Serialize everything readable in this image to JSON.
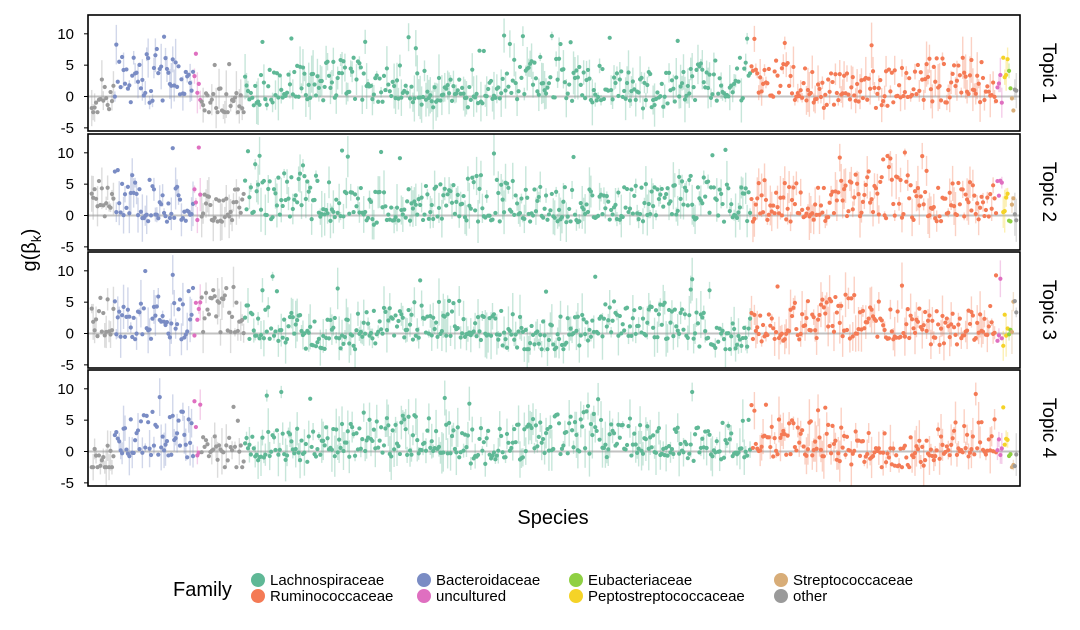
{
  "chart_data": {
    "type": "scatter",
    "xlabel": "Species",
    "ylabel": "g(β_k)",
    "ylabel_main": "g(β",
    "ylabel_sub": "k",
    "ylabel_close": ")",
    "y_ticks": [
      -5,
      0,
      5,
      10
    ],
    "ylim": [
      -5.5,
      13
    ],
    "reference_line_y": 0,
    "n_species": 640,
    "panels": [
      {
        "label": "Topic 1",
        "seed": 11
      },
      {
        "label": "Topic 2",
        "seed": 23
      },
      {
        "label": "Topic 3",
        "seed": 37
      },
      {
        "label": "Topic 4",
        "seed": 53
      }
    ],
    "legend": {
      "title": "Family",
      "position": "bottom",
      "entries": [
        {
          "name": "Lachnospiraceae",
          "color": "#5fb896"
        },
        {
          "name": "Ruminococcaceae",
          "color": "#f47a55"
        },
        {
          "name": "Bacteroidaceae",
          "color": "#7a8cc4"
        },
        {
          "name": "uncultured",
          "color": "#df6fc0"
        },
        {
          "name": "Eubacteriaceae",
          "color": "#8fd043"
        },
        {
          "name": "Peptostreptococcaceae",
          "color": "#f5d327"
        },
        {
          "name": "Streptococcaceae",
          "color": "#d8ad78"
        },
        {
          "name": "other",
          "color": "#9a9a9a"
        }
      ]
    },
    "species_segments": [
      {
        "family": "other",
        "count": 16
      },
      {
        "family": "Bacteroidaceae",
        "count": 55
      },
      {
        "family": "uncultured",
        "count": 5
      },
      {
        "family": "other",
        "count": 30
      },
      {
        "family": "Lachnospiraceae",
        "count": 350
      },
      {
        "family": "Ruminococcaceae",
        "count": 170
      },
      {
        "family": "uncultured",
        "count": 4
      },
      {
        "family": "Peptostreptococcaceae",
        "count": 4
      },
      {
        "family": "Eubacteriaceae",
        "count": 2
      },
      {
        "family": "Streptococcaceae",
        "count": 2
      },
      {
        "family": "other",
        "count": 2
      }
    ],
    "panel_family_means": {
      "Topic 1": {
        "Lachnospiraceae": 2.2,
        "Ruminococcaceae": 2.0,
        "Bacteroidaceae": 2.5,
        "uncultured": 0.5,
        "Eubacteriaceae": 2.0,
        "Peptostreptococcaceae": 3.5,
        "Streptococcaceae": 1.0,
        "other": -0.5
      },
      "Topic 2": {
        "Lachnospiraceae": 2.5,
        "Ruminococcaceae": 3.5,
        "Bacteroidaceae": 3.5,
        "uncultured": 4.5,
        "Eubacteriaceae": 3.0,
        "Peptostreptococcaceae": 3.0,
        "Streptococcaceae": 3.0,
        "other": 3.0
      },
      "Topic 3": {
        "Lachnospiraceae": 1.2,
        "Ruminococcaceae": 2.0,
        "Bacteroidaceae": 4.0,
        "uncultured": 1.5,
        "Eubacteriaceae": 1.0,
        "Peptostreptococcaceae": 0.5,
        "Streptococcaceae": 2.0,
        "other": 3.5
      },
      "Topic 4": {
        "Lachnospiraceae": 2.2,
        "Ruminococcaceae": 1.2,
        "Bacteroidaceae": 2.5,
        "uncultured": 0.2,
        "Eubacteriaceae": -1.0,
        "Peptostreptococcaceae": 0.5,
        "Streptococcaceae": -1.0,
        "other": -0.5
      }
    }
  }
}
